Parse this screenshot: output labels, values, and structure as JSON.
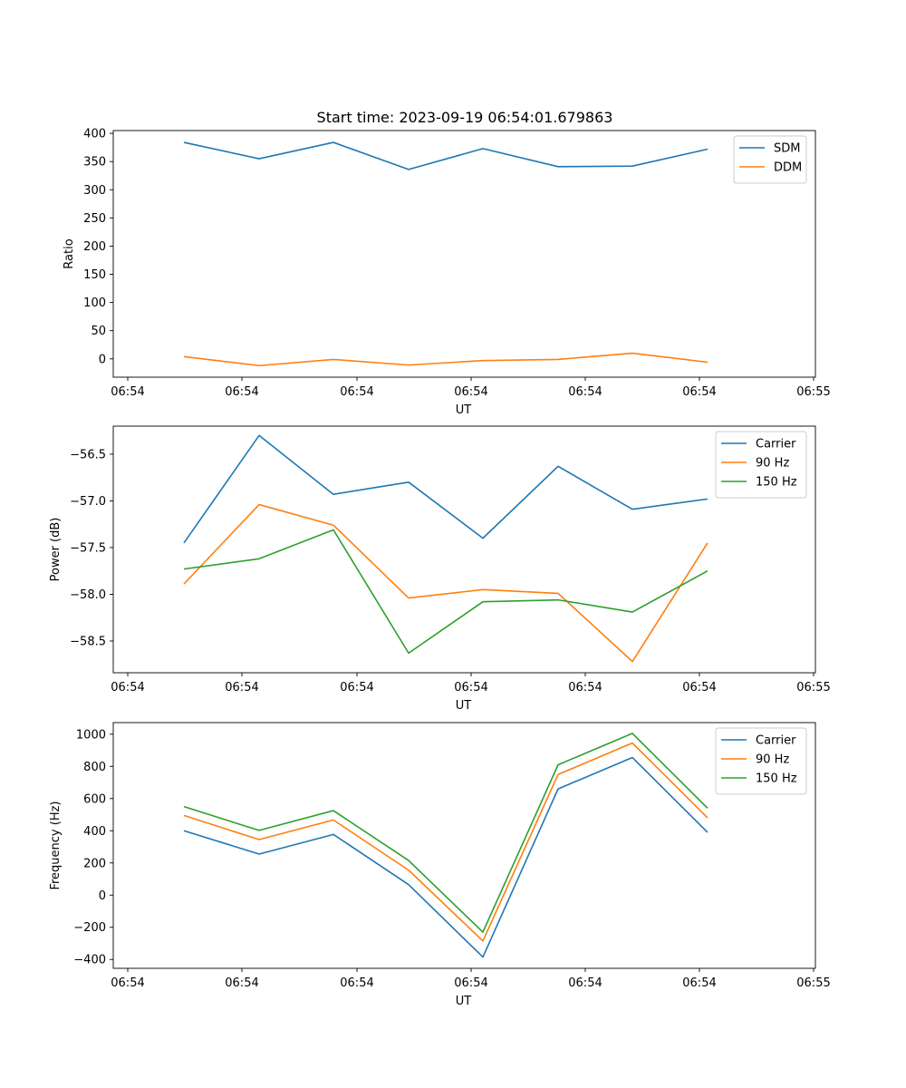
{
  "figure": {
    "title": "Start time: 2023-09-19 06:54:01.679863"
  },
  "chart_data": [
    {
      "type": "line",
      "title": "Start time: 2023-09-19 06:54:01.679863",
      "xlabel": "UT",
      "ylabel": "Ratio",
      "x_tick_labels": [
        "06:54",
        "06:54",
        "06:54",
        "06:54",
        "06:54",
        "06:54",
        "06:55"
      ],
      "y_ticks": [
        0,
        50,
        100,
        150,
        200,
        250,
        300,
        350,
        400
      ],
      "y_tick_labels": [
        "0",
        "50",
        "100",
        "150",
        "200",
        "250",
        "300",
        "350",
        "400"
      ],
      "ylim": [
        -32.5,
        405
      ],
      "legend_position": "top-right",
      "series": [
        {
          "name": "SDM",
          "color": "#1f77b4",
          "values": [
            384,
            355,
            384,
            336,
            373,
            341,
            342,
            372
          ]
        },
        {
          "name": "DDM",
          "color": "#ff7f0e",
          "values": [
            4,
            -12,
            -1,
            -11,
            -3,
            -1,
            10,
            -6
          ]
        }
      ]
    },
    {
      "type": "line",
      "title": "",
      "xlabel": "UT",
      "ylabel": "Power (dB)",
      "x_tick_labels": [
        "06:54",
        "06:54",
        "06:54",
        "06:54",
        "06:54",
        "06:54",
        "06:55"
      ],
      "y_ticks": [
        -58.5,
        -58.0,
        -57.5,
        -57.0,
        -56.5
      ],
      "y_tick_labels": [
        "−58.5",
        "−58.0",
        "−57.5",
        "−57.0",
        "−56.5"
      ],
      "ylim": [
        -58.84,
        -56.2
      ],
      "legend_position": "top-right",
      "series": [
        {
          "name": "Carrier",
          "color": "#1f77b4",
          "values": [
            -57.45,
            -56.3,
            -56.93,
            -56.8,
            -57.4,
            -56.63,
            -57.09,
            -56.98
          ]
        },
        {
          "name": "90 Hz",
          "color": "#ff7f0e",
          "values": [
            -57.89,
            -57.04,
            -57.26,
            -58.04,
            -57.95,
            -57.99,
            -58.72,
            -57.45
          ]
        },
        {
          "name": "150 Hz",
          "color": "#2ca02c",
          "values": [
            -57.73,
            -57.62,
            -57.31,
            -58.63,
            -58.08,
            -58.06,
            -58.19,
            -57.75
          ]
        }
      ]
    },
    {
      "type": "line",
      "title": "",
      "xlabel": "UT",
      "ylabel": "Frequency (Hz)",
      "x_tick_labels": [
        "06:54",
        "06:54",
        "06:54",
        "06:54",
        "06:54",
        "06:54",
        "06:55"
      ],
      "y_ticks": [
        -400,
        -200,
        0,
        200,
        400,
        600,
        800,
        1000
      ],
      "y_tick_labels": [
        "−400",
        "−200",
        "0",
        "200",
        "400",
        "600",
        "800",
        "1000"
      ],
      "ylim": [
        -455,
        1072
      ],
      "legend_position": "top-right",
      "series": [
        {
          "name": "Carrier",
          "color": "#1f77b4",
          "values": [
            400,
            255,
            377,
            65,
            -385,
            660,
            855,
            390
          ]
        },
        {
          "name": "90 Hz",
          "color": "#ff7f0e",
          "values": [
            495,
            345,
            467,
            155,
            -285,
            750,
            945,
            480
          ]
        },
        {
          "name": "150 Hz",
          "color": "#2ca02c",
          "values": [
            550,
            402,
            525,
            215,
            -230,
            810,
            1005,
            540
          ]
        }
      ]
    }
  ]
}
